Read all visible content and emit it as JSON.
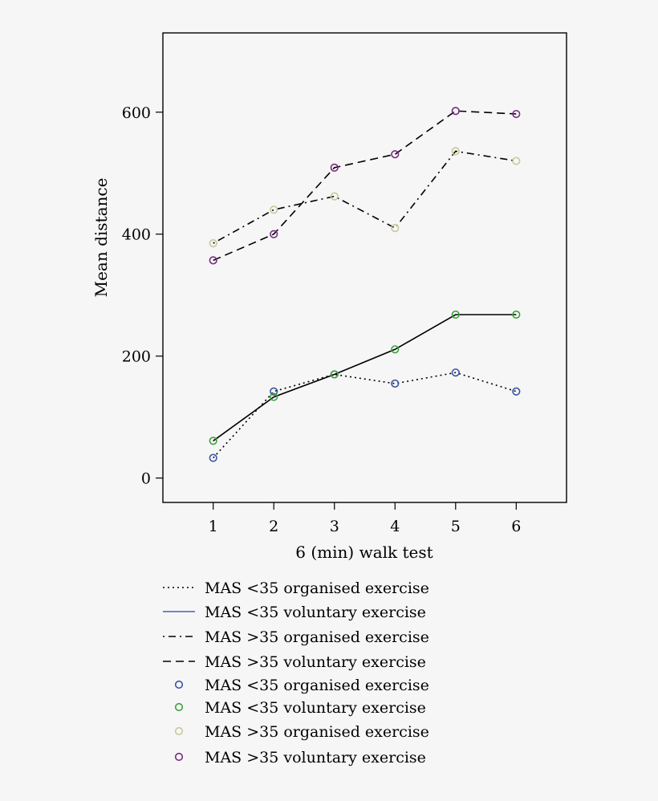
{
  "chart_data": {
    "type": "line",
    "title": "",
    "xlabel": "6 (min) walk test",
    "ylabel": "Mean distance",
    "x": [
      1,
      2,
      3,
      4,
      5,
      6
    ],
    "x_tick_labels": [
      "1",
      "2",
      "3",
      "4",
      "5",
      "6"
    ],
    "y_ticks": [
      0,
      200,
      400,
      600
    ],
    "y_tick_labels": [
      "0",
      "200",
      "400",
      "600"
    ],
    "xlim": [
      0.17,
      6.83
    ],
    "ylim": [
      -40,
      730
    ],
    "grid": false,
    "legend_position": "below",
    "series": [
      {
        "name": "MAS <35 organised exercise",
        "values": [
          33,
          142,
          170,
          155,
          173,
          142
        ],
        "line_style": "dotted",
        "line_color": "#000000",
        "marker_color": "#3a55a4"
      },
      {
        "name": "MAS <35 voluntary exercise",
        "values": [
          61,
          133,
          170,
          211,
          268,
          268
        ],
        "line_style": "solid",
        "line_color": "#000000",
        "marker_color": "#3aa33a"
      },
      {
        "name": "MAS >35 organised exercise",
        "values": [
          385,
          440,
          462,
          410,
          536,
          520
        ],
        "line_style": "dashdot",
        "line_color": "#000000",
        "marker_color": "#c9c79a"
      },
      {
        "name": "MAS >35 voluntary exercise",
        "values": [
          357,
          400,
          509,
          531,
          602,
          597
        ],
        "line_style": "dashed",
        "line_color": "#000000",
        "marker_color": "#7a2a80"
      }
    ],
    "legend": {
      "line_entries": [
        {
          "label": "MAS <35 organised exercise",
          "style": "dotted",
          "color": "#000000"
        },
        {
          "label": "MAS <35 voluntary exercise",
          "style": "solid",
          "color": "#4a5fb0"
        },
        {
          "label": "MAS >35 organised exercise",
          "style": "dashdot",
          "color": "#000000"
        },
        {
          "label": "MAS >35 voluntary exercise",
          "style": "dashed",
          "color": "#000000"
        }
      ],
      "marker_entries": [
        {
          "label": "MAS <35 organised exercise",
          "color": "#3a55a4"
        },
        {
          "label": "MAS <35 voluntary exercise",
          "color": "#3aa33a"
        },
        {
          "label": "MAS >35 organised exercise",
          "color": "#c9c79a"
        },
        {
          "label": "MAS >35 voluntary exercise",
          "color": "#7a2a80"
        }
      ]
    }
  }
}
